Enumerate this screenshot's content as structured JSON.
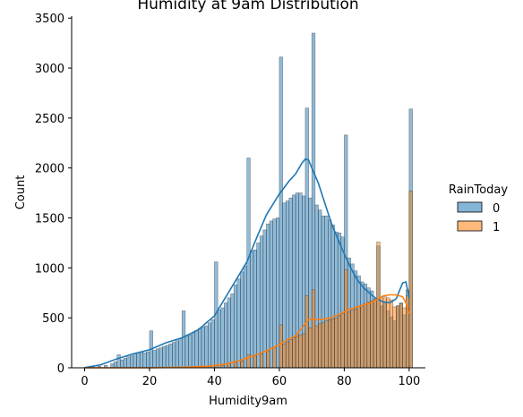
{
  "chart_data": {
    "type": "bar",
    "title": "Humidity at 9am Distribution",
    "xlabel": "Humidity9am",
    "ylabel": "Count",
    "xlim": [
      -4,
      105
    ],
    "ylim": [
      0,
      3520
    ],
    "x_ticks": [
      0,
      20,
      40,
      60,
      80,
      100
    ],
    "y_ticks": [
      0,
      500,
      1000,
      1500,
      2000,
      2500,
      3000,
      3500
    ],
    "grid": false,
    "legend": {
      "title": "RainToday",
      "placement": "right"
    },
    "bin_width": 1.02,
    "series": [
      {
        "name": "0",
        "color": "#1f77b4",
        "bins": [
          [
            0,
            5
          ],
          [
            2,
            10
          ],
          [
            4,
            15
          ],
          [
            6,
            25
          ],
          [
            8,
            40
          ],
          [
            9,
            60
          ],
          [
            10,
            130
          ],
          [
            11,
            80
          ],
          [
            12,
            95
          ],
          [
            13,
            110
          ],
          [
            14,
            120
          ],
          [
            15,
            140
          ],
          [
            16,
            150
          ],
          [
            17,
            155
          ],
          [
            18,
            150
          ],
          [
            19,
            160
          ],
          [
            20,
            370
          ],
          [
            21,
            175
          ],
          [
            22,
            190
          ],
          [
            23,
            200
          ],
          [
            24,
            215
          ],
          [
            25,
            225
          ],
          [
            26,
            240
          ],
          [
            27,
            255
          ],
          [
            28,
            270
          ],
          [
            29,
            290
          ],
          [
            30,
            570
          ],
          [
            31,
            320
          ],
          [
            32,
            330
          ],
          [
            33,
            350
          ],
          [
            34,
            375
          ],
          [
            35,
            395
          ],
          [
            36,
            410
          ],
          [
            37,
            420
          ],
          [
            38,
            450
          ],
          [
            39,
            480
          ],
          [
            40,
            1060
          ],
          [
            41,
            580
          ],
          [
            42,
            600
          ],
          [
            43,
            650
          ],
          [
            44,
            700
          ],
          [
            45,
            740
          ],
          [
            46,
            830
          ],
          [
            47,
            890
          ],
          [
            48,
            960
          ],
          [
            49,
            1020
          ],
          [
            50,
            2100
          ],
          [
            51,
            1170
          ],
          [
            52,
            1180
          ],
          [
            53,
            1250
          ],
          [
            54,
            1320
          ],
          [
            55,
            1380
          ],
          [
            56,
            1440
          ],
          [
            57,
            1470
          ],
          [
            58,
            1490
          ],
          [
            59,
            1500
          ],
          [
            60,
            3110
          ],
          [
            61,
            1650
          ],
          [
            62,
            1670
          ],
          [
            63,
            1700
          ],
          [
            64,
            1730
          ],
          [
            65,
            1750
          ],
          [
            66,
            1750
          ],
          [
            67,
            1720
          ],
          [
            68,
            2600
          ],
          [
            69,
            1700
          ],
          [
            70,
            3350
          ],
          [
            71,
            1630
          ],
          [
            72,
            1580
          ],
          [
            73,
            1520
          ],
          [
            74,
            1520
          ],
          [
            75,
            1480
          ],
          [
            76,
            1430
          ],
          [
            77,
            1360
          ],
          [
            78,
            1350
          ],
          [
            79,
            1310
          ],
          [
            80,
            2330
          ],
          [
            81,
            1100
          ],
          [
            82,
            1040
          ],
          [
            83,
            970
          ],
          [
            84,
            920
          ],
          [
            85,
            860
          ],
          [
            86,
            840
          ],
          [
            87,
            800
          ],
          [
            88,
            770
          ],
          [
            89,
            690
          ],
          [
            90,
            1220
          ],
          [
            91,
            620
          ],
          [
            92,
            660
          ],
          [
            93,
            570
          ],
          [
            94,
            510
          ],
          [
            95,
            470
          ],
          [
            96,
            620
          ],
          [
            97,
            650
          ],
          [
            98,
            530
          ],
          [
            99,
            780
          ],
          [
            100,
            2590
          ]
        ],
        "kde": [
          [
            0,
            2
          ],
          [
            5,
            30
          ],
          [
            10,
            90
          ],
          [
            15,
            140
          ],
          [
            20,
            180
          ],
          [
            25,
            250
          ],
          [
            30,
            300
          ],
          [
            35,
            380
          ],
          [
            40,
            520
          ],
          [
            45,
            790
          ],
          [
            50,
            1060
          ],
          [
            53,
            1300
          ],
          [
            56,
            1530
          ],
          [
            60,
            1740
          ],
          [
            63,
            1870
          ],
          [
            65,
            1940
          ],
          [
            67,
            2050
          ],
          [
            68,
            2090
          ],
          [
            69,
            2080
          ],
          [
            70,
            2000
          ],
          [
            72,
            1850
          ],
          [
            74,
            1650
          ],
          [
            76,
            1450
          ],
          [
            78,
            1290
          ],
          [
            80,
            1140
          ],
          [
            82,
            1000
          ],
          [
            84,
            880
          ],
          [
            86,
            800
          ],
          [
            88,
            740
          ],
          [
            90,
            690
          ],
          [
            92,
            660
          ],
          [
            94,
            650
          ],
          [
            96,
            690
          ],
          [
            98,
            850
          ],
          [
            99,
            860
          ],
          [
            100,
            700
          ]
        ]
      },
      {
        "name": "1",
        "color": "#ff7f0e",
        "bins": [
          [
            0,
            0
          ],
          [
            10,
            0
          ],
          [
            20,
            0
          ],
          [
            30,
            5
          ],
          [
            36,
            10
          ],
          [
            38,
            15
          ],
          [
            40,
            20
          ],
          [
            42,
            25
          ],
          [
            44,
            40
          ],
          [
            46,
            55
          ],
          [
            48,
            70
          ],
          [
            50,
            130
          ],
          [
            52,
            120
          ],
          [
            54,
            140
          ],
          [
            56,
            170
          ],
          [
            58,
            200
          ],
          [
            60,
            430
          ],
          [
            61,
            240
          ],
          [
            62,
            260
          ],
          [
            63,
            280
          ],
          [
            64,
            300
          ],
          [
            65,
            320
          ],
          [
            66,
            330
          ],
          [
            67,
            340
          ],
          [
            68,
            720
          ],
          [
            69,
            400
          ],
          [
            70,
            780
          ],
          [
            71,
            420
          ],
          [
            72,
            440
          ],
          [
            73,
            450
          ],
          [
            74,
            470
          ],
          [
            75,
            480
          ],
          [
            76,
            490
          ],
          [
            77,
            500
          ],
          [
            78,
            520
          ],
          [
            79,
            540
          ],
          [
            80,
            980
          ],
          [
            81,
            560
          ],
          [
            82,
            580
          ],
          [
            83,
            590
          ],
          [
            84,
            610
          ],
          [
            85,
            620
          ],
          [
            86,
            640
          ],
          [
            87,
            660
          ],
          [
            88,
            670
          ],
          [
            89,
            690
          ],
          [
            90,
            1260
          ],
          [
            91,
            700
          ],
          [
            92,
            710
          ],
          [
            93,
            700
          ],
          [
            94,
            680
          ],
          [
            95,
            610
          ],
          [
            96,
            620
          ],
          [
            97,
            640
          ],
          [
            98,
            600
          ],
          [
            99,
            720
          ],
          [
            100,
            1770
          ]
        ],
        "kde": [
          [
            0,
            0
          ],
          [
            20,
            0
          ],
          [
            30,
            5
          ],
          [
            38,
            15
          ],
          [
            44,
            40
          ],
          [
            48,
            75
          ],
          [
            52,
            120
          ],
          [
            56,
            170
          ],
          [
            60,
            230
          ],
          [
            63,
            290
          ],
          [
            65,
            320
          ],
          [
            67,
            400
          ],
          [
            69,
            480
          ],
          [
            70,
            490
          ],
          [
            72,
            480
          ],
          [
            74,
            490
          ],
          [
            76,
            500
          ],
          [
            78,
            530
          ],
          [
            80,
            560
          ],
          [
            82,
            590
          ],
          [
            84,
            610
          ],
          [
            86,
            630
          ],
          [
            88,
            650
          ],
          [
            90,
            680
          ],
          [
            92,
            720
          ],
          [
            94,
            730
          ],
          [
            96,
            730
          ],
          [
            98,
            710
          ],
          [
            99,
            650
          ],
          [
            100,
            540
          ]
        ]
      }
    ]
  }
}
